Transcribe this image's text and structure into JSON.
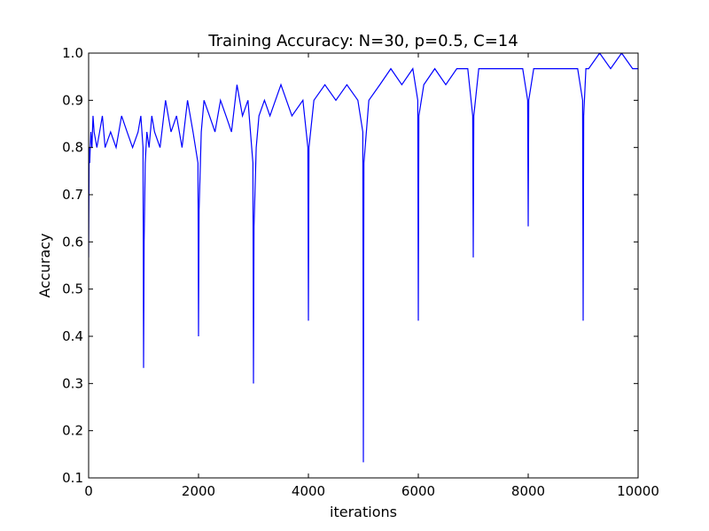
{
  "chart_data": {
    "type": "line",
    "title": "Training Accuracy: N=30, p=0.5, C=14",
    "xlabel": "iterations",
    "ylabel": "Accuracy",
    "xlim": [
      0,
      10000
    ],
    "ylim": [
      0.1,
      1.0
    ],
    "grid": false,
    "legend": "none",
    "x_ticks": [
      {
        "value": 0,
        "label": "0"
      },
      {
        "value": 2000,
        "label": "2000"
      },
      {
        "value": 4000,
        "label": "4000"
      },
      {
        "value": 6000,
        "label": "6000"
      },
      {
        "value": 8000,
        "label": "8000"
      },
      {
        "value": 10000,
        "label": "10000"
      }
    ],
    "y_ticks": [
      {
        "value": 0.1,
        "label": "0.1"
      },
      {
        "value": 0.2,
        "label": "0.2"
      },
      {
        "value": 0.3,
        "label": "0.3"
      },
      {
        "value": 0.4,
        "label": "0.4"
      },
      {
        "value": 0.5,
        "label": "0.5"
      },
      {
        "value": 0.6,
        "label": "0.6"
      },
      {
        "value": 0.7,
        "label": "0.7"
      },
      {
        "value": 0.8,
        "label": "0.8"
      },
      {
        "value": 0.9,
        "label": "0.9"
      },
      {
        "value": 1.0,
        "label": "1.0"
      }
    ],
    "series": [
      {
        "color": "#0000ff",
        "x": [
          0,
          10,
          20,
          40,
          60,
          80,
          100,
          150,
          200,
          250,
          300,
          400,
          500,
          600,
          700,
          800,
          900,
          950,
          990,
          1000,
          1010,
          1030,
          1060,
          1100,
          1150,
          1200,
          1300,
          1400,
          1500,
          1600,
          1700,
          1800,
          1900,
          1990,
          2000,
          2010,
          2050,
          2100,
          2200,
          2300,
          2400,
          2500,
          2600,
          2700,
          2800,
          2900,
          2990,
          3000,
          3010,
          3050,
          3100,
          3200,
          3300,
          3500,
          3700,
          3900,
          3990,
          4000,
          4010,
          4100,
          4300,
          4500,
          4700,
          4900,
          4990,
          5000,
          5010,
          5100,
          5300,
          5500,
          5700,
          5900,
          5990,
          6000,
          6010,
          6100,
          6300,
          6500,
          6700,
          6900,
          6990,
          7000,
          7010,
          7100,
          7300,
          7500,
          7700,
          7900,
          7990,
          8000,
          8010,
          8100,
          8300,
          8500,
          8700,
          8900,
          8990,
          9000,
          9010,
          9050,
          9100,
          9300,
          9500,
          9700,
          9900,
          10000
        ],
        "y": [
          0.567,
          0.8,
          0.767,
          0.833,
          0.8,
          0.867,
          0.833,
          0.8,
          0.833,
          0.867,
          0.8,
          0.833,
          0.8,
          0.867,
          0.833,
          0.8,
          0.833,
          0.867,
          0.8,
          0.333,
          0.6,
          0.767,
          0.833,
          0.8,
          0.867,
          0.833,
          0.8,
          0.9,
          0.833,
          0.867,
          0.8,
          0.9,
          0.833,
          0.767,
          0.4,
          0.667,
          0.833,
          0.9,
          0.867,
          0.833,
          0.9,
          0.867,
          0.833,
          0.933,
          0.867,
          0.9,
          0.767,
          0.3,
          0.633,
          0.8,
          0.867,
          0.9,
          0.867,
          0.933,
          0.867,
          0.9,
          0.8,
          0.433,
          0.8,
          0.9,
          0.933,
          0.9,
          0.933,
          0.9,
          0.833,
          0.133,
          0.767,
          0.9,
          0.933,
          0.967,
          0.933,
          0.967,
          0.9,
          0.433,
          0.867,
          0.933,
          0.967,
          0.933,
          0.967,
          0.967,
          0.867,
          0.567,
          0.867,
          0.967,
          0.967,
          0.967,
          0.967,
          0.967,
          0.9,
          0.633,
          0.9,
          0.967,
          0.967,
          0.967,
          0.967,
          0.967,
          0.9,
          0.433,
          0.867,
          0.967,
          0.967,
          1.0,
          0.967,
          1.0,
          0.967,
          0.967
        ]
      }
    ]
  }
}
